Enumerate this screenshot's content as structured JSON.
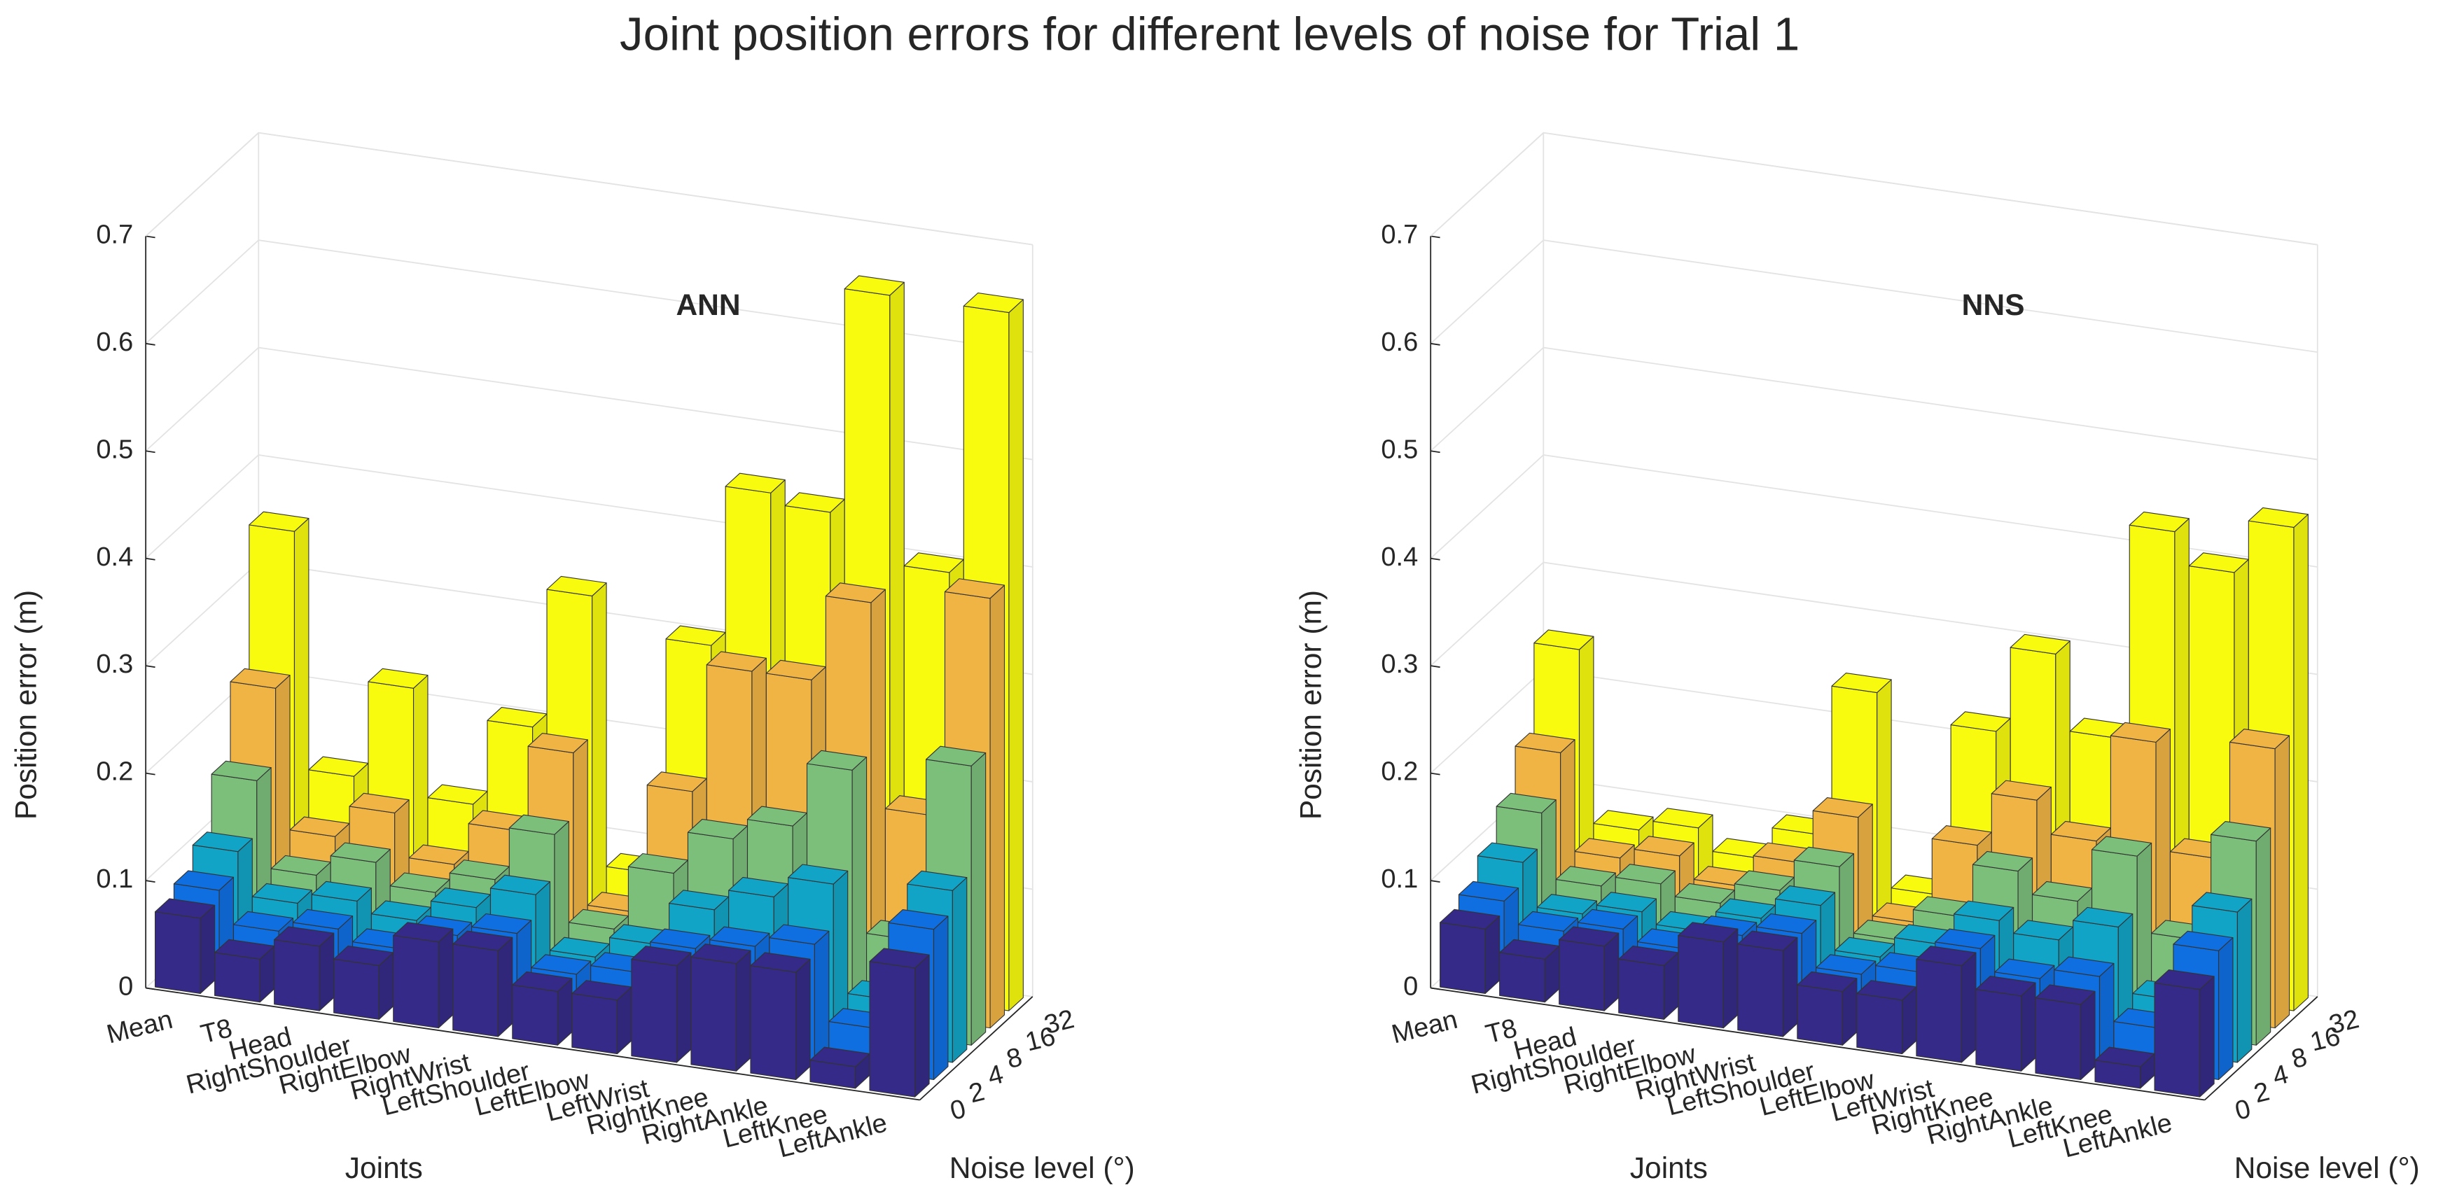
{
  "title": "Joint position errors for different levels of noise for Trial 1",
  "chart_data": [
    {
      "type": "bar3d",
      "title": "ANN",
      "xlabel": "Joints",
      "ylabel": "Noise level (°)",
      "zlabel": "Position error (m)",
      "categories": [
        "Mean",
        "T8",
        "Head",
        "RightShoulder",
        "RightElbow",
        "RightWrist",
        "LeftShoulder",
        "LeftElbow",
        "LeftWrist",
        "RightKnee",
        "RightAnkle",
        "LeftKnee",
        "LeftAnkle"
      ],
      "series": [
        {
          "name": "0",
          "color": "#352a87",
          "values": [
            0.07,
            0.04,
            0.06,
            0.05,
            0.08,
            0.08,
            0.05,
            0.05,
            0.09,
            0.1,
            0.1,
            0.02,
            0.12
          ]
        },
        {
          "name": "2",
          "color": "#0f6fe0",
          "values": [
            0.08,
            0.05,
            0.06,
            0.05,
            0.07,
            0.08,
            0.05,
            0.06,
            0.09,
            0.1,
            0.11,
            0.04,
            0.14
          ]
        },
        {
          "name": "4",
          "color": "#12a4c6",
          "values": [
            0.1,
            0.06,
            0.07,
            0.06,
            0.08,
            0.1,
            0.05,
            0.07,
            0.11,
            0.13,
            0.15,
            0.05,
            0.16
          ]
        },
        {
          "name": "8",
          "color": "#7cbf7b",
          "values": [
            0.15,
            0.07,
            0.09,
            0.07,
            0.09,
            0.14,
            0.06,
            0.12,
            0.16,
            0.18,
            0.24,
            0.09,
            0.26
          ]
        },
        {
          "name": "16",
          "color": "#f0b445",
          "values": [
            0.22,
            0.09,
            0.12,
            0.08,
            0.12,
            0.2,
            0.06,
            0.18,
            0.3,
            0.3,
            0.38,
            0.19,
            0.4
          ]
        },
        {
          "name": "32",
          "color": "#f9fb0e",
          "values": [
            0.35,
            0.13,
            0.22,
            0.12,
            0.2,
            0.33,
            0.08,
            0.3,
            0.45,
            0.44,
            0.65,
            0.4,
            0.65
          ]
        }
      ],
      "zlim": [
        0,
        0.7
      ],
      "zticks": [
        0,
        0.1,
        0.2,
        0.3,
        0.4,
        0.5,
        0.6,
        0.7
      ],
      "grid": true
    },
    {
      "type": "bar3d",
      "title": "NNS",
      "xlabel": "Joints",
      "ylabel": "Noise level (°)",
      "zlabel": "Position error (m)",
      "categories": [
        "Mean",
        "T8",
        "Head",
        "RightShoulder",
        "RightElbow",
        "RightWrist",
        "LeftShoulder",
        "LeftElbow",
        "LeftWrist",
        "RightKnee",
        "RightAnkle",
        "LeftKnee",
        "LeftAnkle"
      ],
      "series": [
        {
          "name": "0",
          "color": "#352a87",
          "values": [
            0.06,
            0.04,
            0.06,
            0.05,
            0.08,
            0.08,
            0.05,
            0.05,
            0.09,
            0.07,
            0.07,
            0.02,
            0.1
          ]
        },
        {
          "name": "2",
          "color": "#0f6fe0",
          "values": [
            0.07,
            0.05,
            0.06,
            0.05,
            0.07,
            0.08,
            0.05,
            0.06,
            0.09,
            0.07,
            0.08,
            0.04,
            0.12
          ]
        },
        {
          "name": "4",
          "color": "#12a4c6",
          "values": [
            0.09,
            0.05,
            0.06,
            0.05,
            0.07,
            0.09,
            0.05,
            0.07,
            0.1,
            0.09,
            0.11,
            0.05,
            0.14
          ]
        },
        {
          "name": "8",
          "color": "#7cbf7b",
          "values": [
            0.12,
            0.06,
            0.07,
            0.06,
            0.08,
            0.11,
            0.05,
            0.08,
            0.13,
            0.11,
            0.16,
            0.09,
            0.19
          ]
        },
        {
          "name": "16",
          "color": "#f0b445",
          "values": [
            0.16,
            0.07,
            0.08,
            0.06,
            0.09,
            0.14,
            0.05,
            0.13,
            0.18,
            0.15,
            0.25,
            0.15,
            0.26
          ]
        },
        {
          "name": "32",
          "color": "#f9fb0e",
          "values": [
            0.24,
            0.08,
            0.09,
            0.07,
            0.1,
            0.24,
            0.06,
            0.22,
            0.3,
            0.23,
            0.43,
            0.4,
            0.45
          ]
        }
      ],
      "zlim": [
        0,
        0.7
      ],
      "zticks": [
        0,
        0.1,
        0.2,
        0.3,
        0.4,
        0.5,
        0.6,
        0.7
      ],
      "grid": true
    }
  ]
}
